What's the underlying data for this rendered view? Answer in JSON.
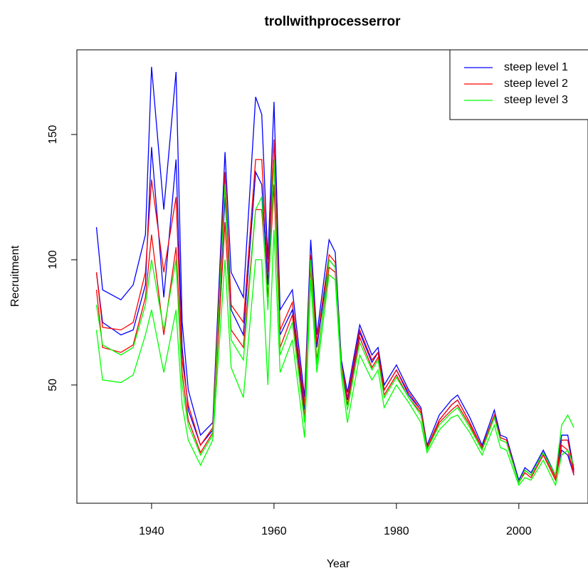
{
  "chart_data": {
    "type": "line",
    "title": "trollwithprocesserror",
    "xlabel": "Year",
    "ylabel": "Recruitment",
    "x": [
      1931,
      1932,
      1935,
      1937,
      1939,
      1940,
      1942,
      1944,
      1945,
      1946,
      1948,
      1950,
      1952,
      1953,
      1955,
      1957,
      1958,
      1959,
      1960,
      1961,
      1963,
      1965,
      1966,
      1967,
      1969,
      1970,
      1971,
      1972,
      1974,
      1976,
      1977,
      1978,
      1980,
      1982,
      1984,
      1985,
      1987,
      1989,
      1990,
      1992,
      1994,
      1996,
      1997,
      1998,
      2000,
      2001,
      2002,
      2004,
      2006,
      2007,
      2008,
      2009
    ],
    "series": [
      {
        "name": "steep level 1",
        "color": "#0000ff",
        "values": [
          [
            113,
            88,
            84,
            90,
            110,
            177,
            120,
            175,
            75,
            48,
            30,
            35,
            143,
            95,
            85,
            165,
            158,
            100,
            163,
            80,
            88,
            45,
            108,
            70,
            108,
            103,
            60,
            47,
            74,
            62,
            65,
            50,
            58,
            48,
            41,
            26,
            38,
            44,
            46,
            37,
            26,
            40,
            30,
            29,
            12,
            17,
            15,
            24,
            14,
            30,
            30,
            16
          ],
          [
            95,
            75,
            70,
            72,
            90,
            145,
            85,
            140,
            65,
            40,
            26,
            32,
            125,
            80,
            70,
            135,
            130,
            90,
            140,
            70,
            80,
            40,
            100,
            65,
            100,
            97,
            57,
            44,
            71,
            59,
            63,
            48,
            56,
            46,
            40,
            25,
            36,
            42,
            44,
            35,
            25,
            38,
            29,
            28,
            11,
            16,
            14,
            23,
            13,
            24,
            22,
            14
          ]
        ]
      },
      {
        "name": "steep level 2",
        "color": "#ff0000",
        "values": [
          [
            95,
            73,
            72,
            75,
            95,
            132,
            95,
            125,
            60,
            42,
            26,
            33,
            135,
            82,
            75,
            140,
            140,
            95,
            148,
            72,
            83,
            42,
            102,
            67,
            102,
            99,
            58,
            45,
            72,
            60,
            63,
            48,
            56,
            47,
            40,
            25,
            36,
            42,
            44,
            35,
            25,
            38,
            29,
            28,
            11,
            16,
            14,
            23,
            13,
            28,
            28,
            15
          ],
          [
            88,
            65,
            63,
            66,
            85,
            110,
            70,
            105,
            55,
            36,
            23,
            31,
            115,
            72,
            65,
            120,
            120,
            85,
            130,
            65,
            78,
            37,
            97,
            60,
            97,
            95,
            56,
            42,
            69,
            57,
            61,
            46,
            54,
            45,
            39,
            24,
            35,
            40,
            42,
            34,
            24,
            37,
            28,
            27,
            11,
            15,
            13,
            22,
            12,
            26,
            24,
            14
          ]
        ]
      },
      {
        "name": "steep level 3",
        "color": "#00ff00",
        "values": [
          [
            82,
            66,
            62,
            65,
            82,
            100,
            72,
            100,
            50,
            34,
            22,
            30,
            130,
            68,
            60,
            120,
            125,
            80,
            140,
            62,
            75,
            35,
            100,
            58,
            100,
            97,
            57,
            40,
            67,
            56,
            60,
            45,
            53,
            45,
            38,
            24,
            34,
            39,
            41,
            33,
            24,
            37,
            28,
            27,
            11,
            16,
            14,
            23,
            14,
            34,
            38,
            33
          ],
          [
            72,
            52,
            51,
            54,
            70,
            80,
            55,
            80,
            42,
            28,
            18,
            28,
            100,
            57,
            45,
            100,
            100,
            50,
            112,
            55,
            68,
            29,
            92,
            55,
            94,
            92,
            54,
            35,
            62,
            52,
            56,
            41,
            50,
            43,
            35,
            23,
            32,
            37,
            38,
            31,
            22,
            34,
            25,
            24,
            10,
            13,
            12,
            20,
            10,
            22,
            24,
            18
          ]
        ]
      }
    ],
    "xlim": [
      1927.8,
      2011.3
    ],
    "ylim": [
      2.8,
      183.8
    ],
    "xticks": [
      1940,
      1960,
      1980,
      2000
    ],
    "yticks": [
      50,
      100,
      150
    ],
    "legend": "top-right"
  }
}
